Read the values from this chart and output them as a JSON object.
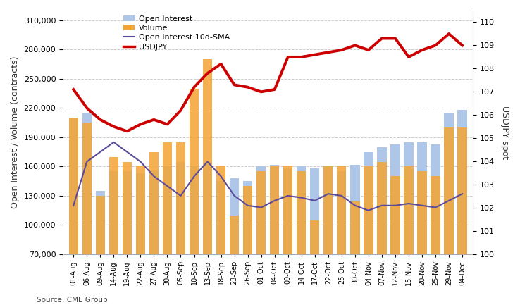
{
  "dates": [
    "01-Aug",
    "06-Aug",
    "09-Aug",
    "14-Aug",
    "19-Aug",
    "22-Aug",
    "27-Aug",
    "30-Aug",
    "05-Sep",
    "10-Sep",
    "13-Sep",
    "18-Sep",
    "23-Sep",
    "26-Sep",
    "01-Oct",
    "04-Oct",
    "09-Oct",
    "14-Oct",
    "17-Oct",
    "22-Oct",
    "25-Oct",
    "30-Oct",
    "04-Nov",
    "07-Nov",
    "12-Nov",
    "15-Nov",
    "20-Nov",
    "25-Nov",
    "29-Nov",
    "04-Dec"
  ],
  "open_interest": [
    210000,
    215000,
    135000,
    155000,
    155000,
    153000,
    156000,
    160000,
    165000,
    160000,
    165000,
    145000,
    148000,
    145000,
    160000,
    162000,
    158000,
    160000,
    158000,
    160000,
    155000,
    162000,
    175000,
    180000,
    183000,
    185000,
    185000,
    183000,
    215000,
    218000
  ],
  "volume": [
    210000,
    205000,
    130000,
    170000,
    165000,
    160000,
    175000,
    185000,
    185000,
    240000,
    270000,
    160000,
    110000,
    140000,
    155000,
    160000,
    160000,
    155000,
    105000,
    160000,
    160000,
    125000,
    160000,
    165000,
    150000,
    160000,
    155000,
    150000,
    200000,
    200000
  ],
  "open_interest_sma": [
    120000,
    165000,
    175000,
    185000,
    175000,
    165000,
    150000,
    140000,
    130000,
    150000,
    165000,
    150000,
    130000,
    120000,
    118000,
    125000,
    130000,
    128000,
    125000,
    132000,
    130000,
    120000,
    115000,
    120000,
    120000,
    122000,
    120000,
    118000,
    125000,
    132000
  ],
  "usdjpy": [
    107.1,
    106.3,
    105.8,
    105.5,
    105.3,
    105.6,
    105.8,
    105.6,
    106.2,
    107.2,
    107.8,
    108.2,
    107.3,
    107.2,
    107.0,
    107.1,
    108.5,
    108.5,
    108.6,
    108.7,
    108.8,
    109.0,
    108.8,
    109.3,
    109.3,
    108.5,
    108.8,
    109.0,
    109.5,
    109.0
  ],
  "left_ylim": [
    70000,
    320000
  ],
  "left_yticks": [
    70000,
    100000,
    130000,
    160000,
    190000,
    220000,
    250000,
    280000,
    310000
  ],
  "right_ylim": [
    100,
    110.5
  ],
  "right_yticks": [
    100,
    101,
    102,
    103,
    104,
    105,
    106,
    107,
    108,
    109,
    110
  ],
  "bar_width": 0.35,
  "oi_color": "#aec6e8",
  "vol_color": "#f4a433",
  "sma_color": "#5c4b9b",
  "usdjpy_color": "#cc0000",
  "ylabel_left": "Open Interest / Volume (contracts)",
  "ylabel_right": "USDJPY spot",
  "source_text": "Source: CME Group",
  "legend_items": [
    "Open Interest",
    "Volume",
    "Open Interest 10d-SMA",
    "USDJPY"
  ],
  "bg_color": "#ffffff",
  "grid_color": "#cccccc"
}
